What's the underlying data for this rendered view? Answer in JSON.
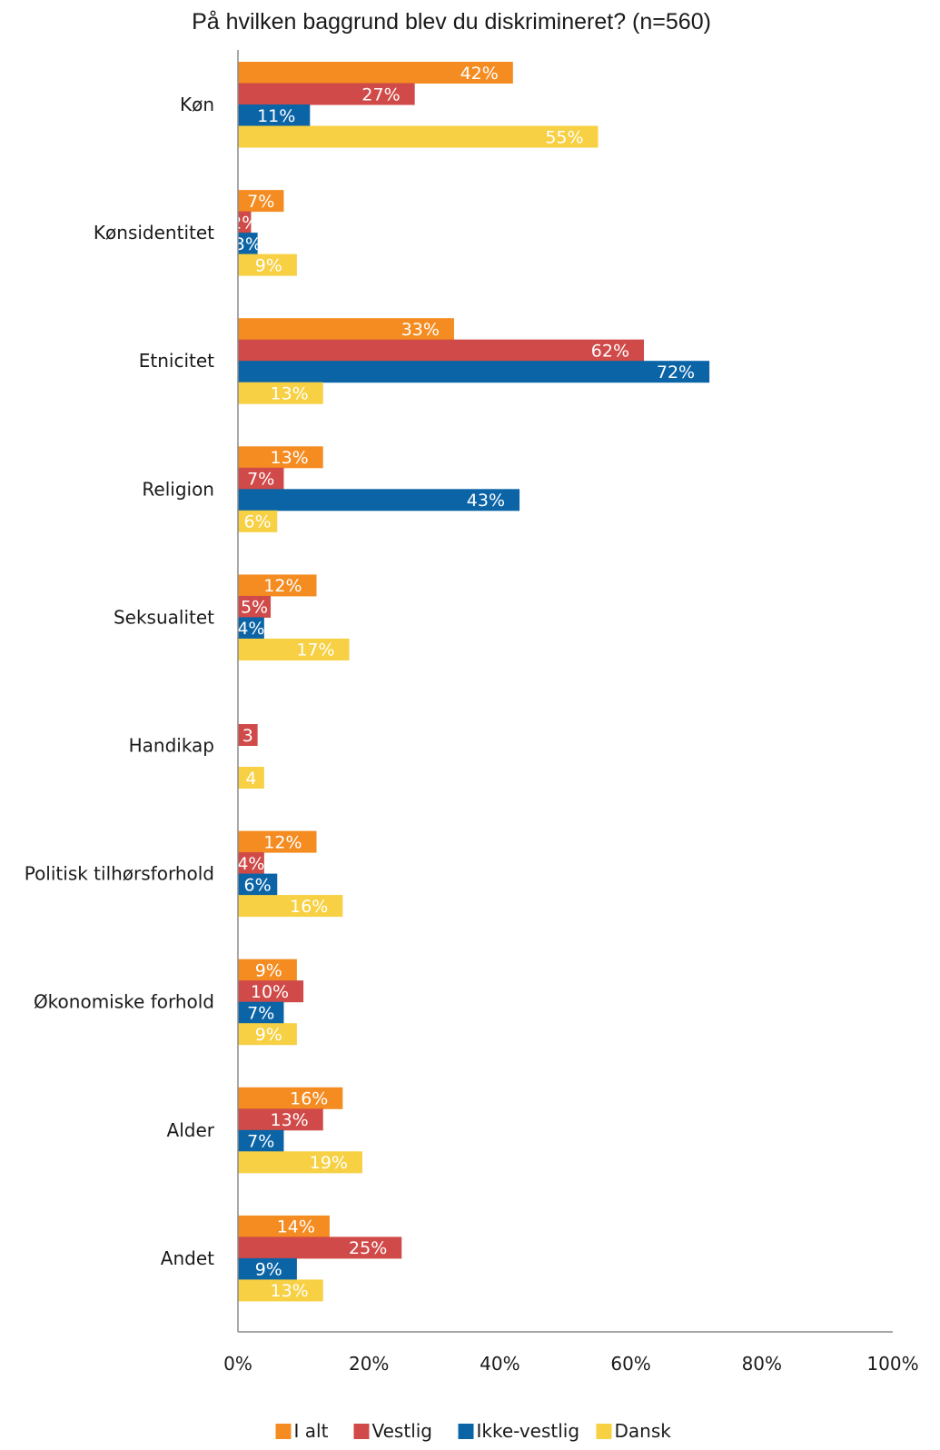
{
  "chart_data": {
    "type": "bar",
    "orientation": "horizontal",
    "title": "På hvilken baggrund blev du diskrimineret? (n=560)",
    "categories": [
      "Køn",
      "Kønsidentitet",
      "Etnicitet",
      "Religion",
      "Seksualitet",
      "Handikap",
      "Politisk tilhørsforhold",
      "Økonomiske forhold",
      "Alder",
      "Andet"
    ],
    "series": [
      {
        "name": "I alt",
        "color": "#F48C22",
        "values": [
          42,
          7,
          33,
          13,
          12,
          0,
          12,
          9,
          16,
          14
        ],
        "labels": [
          "42%",
          "7%",
          "33%",
          "13%",
          "12%",
          "",
          "12%",
          "9%",
          "16%",
          "14%"
        ]
      },
      {
        "name": "Vestlig",
        "color": "#CF4A48",
        "values": [
          27,
          2,
          62,
          7,
          5,
          3,
          4,
          10,
          13,
          25
        ],
        "labels": [
          "27%",
          "2%",
          "62%",
          "7%",
          "5%",
          "3",
          "4%",
          "10%",
          "13%",
          "25%"
        ]
      },
      {
        "name": "Ikke-vestlig",
        "color": "#0B64A6",
        "values": [
          11,
          3,
          72,
          43,
          4,
          0,
          6,
          7,
          7,
          9
        ],
        "labels": [
          "11%",
          "3%",
          "72%",
          "43%",
          "4%",
          "0",
          "6%",
          "7%",
          "7%",
          "9%"
        ]
      },
      {
        "name": "Dansk",
        "color": "#F7D043",
        "values": [
          55,
          9,
          13,
          6,
          17,
          4,
          16,
          9,
          19,
          13
        ],
        "labels": [
          "55%",
          "9%",
          "13%",
          "6%",
          "17%",
          "4",
          "16%",
          "9%",
          "19%",
          "13%"
        ]
      }
    ],
    "xlim": [
      0,
      100
    ],
    "xticks": [
      "0%",
      "20%",
      "40%",
      "60%",
      "80%",
      "100%"
    ],
    "grid": false,
    "legend_position": "bottom"
  }
}
